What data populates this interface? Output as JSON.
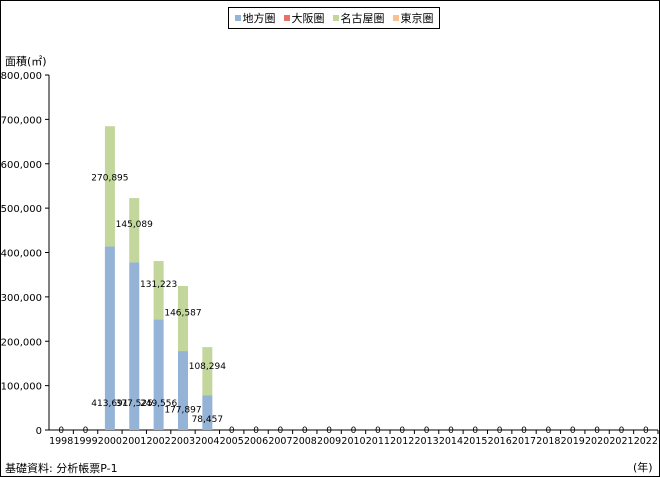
{
  "legend": [
    {
      "name": "地方圏",
      "color": "#95b3d7"
    },
    {
      "name": "大阪圏",
      "color": "#e6726c"
    },
    {
      "name": "名古屋圏",
      "color": "#c3d69b"
    },
    {
      "name": "東京圏",
      "color": "#fac090"
    }
  ],
  "ylabel": "面積(㎡)",
  "xunit": "(年)",
  "source": "基礎資料: 分析帳票P-1",
  "chart_data": {
    "type": "bar",
    "stacked": true,
    "categories": [
      "1998",
      "1999",
      "2000",
      "2001",
      "2002",
      "2003",
      "2004",
      "2005",
      "2006",
      "2007",
      "2008",
      "2009",
      "2010",
      "2011",
      "2012",
      "2013",
      "2014",
      "2015",
      "2016",
      "2017",
      "2018",
      "2019",
      "2020",
      "2021",
      "2022"
    ],
    "series": [
      {
        "name": "地方圏",
        "color": "#95b3d7",
        "values": [
          0,
          0,
          413691,
          377525,
          249556,
          177897,
          78457,
          0,
          0,
          0,
          0,
          0,
          0,
          0,
          0,
          0,
          0,
          0,
          0,
          0,
          0,
          0,
          0,
          0,
          0
        ]
      },
      {
        "name": "大阪圏",
        "color": "#e6726c",
        "values": [
          0,
          0,
          0,
          0,
          0,
          0,
          0,
          0,
          0,
          0,
          0,
          0,
          0,
          0,
          0,
          0,
          0,
          0,
          0,
          0,
          0,
          0,
          0,
          0,
          0
        ]
      },
      {
        "name": "名古屋圏",
        "color": "#c3d69b",
        "values": [
          0,
          0,
          270895,
          145089,
          131223,
          146587,
          108294,
          0,
          0,
          0,
          0,
          0,
          0,
          0,
          0,
          0,
          0,
          0,
          0,
          0,
          0,
          0,
          0,
          0,
          0
        ]
      },
      {
        "name": "東京圏",
        "color": "#fac090",
        "values": [
          0,
          0,
          0,
          0,
          0,
          0,
          0,
          0,
          0,
          0,
          0,
          0,
          0,
          0,
          0,
          0,
          0,
          0,
          0,
          0,
          0,
          0,
          0,
          0,
          0
        ]
      }
    ],
    "data_labels": [
      {
        "category": "2000",
        "series": "地方圏",
        "text": "413,691"
      },
      {
        "category": "2000",
        "series": "名古屋圏",
        "text": "270,895"
      },
      {
        "category": "2001",
        "series": "地方圏",
        "text": "377,525"
      },
      {
        "category": "2001",
        "series": "名古屋圏",
        "text": "145,089"
      },
      {
        "category": "2002",
        "series": "地方圏",
        "text": "249,556"
      },
      {
        "category": "2002",
        "series": "名古屋圏",
        "text": "131,223"
      },
      {
        "category": "2003",
        "series": "地方圏",
        "text": "177,897"
      },
      {
        "category": "2003",
        "series": "名古屋圏",
        "text": "146,587"
      },
      {
        "category": "2004",
        "series": "地方圏",
        "text": "78,457"
      },
      {
        "category": "2004",
        "series": "名古屋圏",
        "text": "108,294"
      }
    ],
    "zero_labels": "0",
    "ylim": [
      0,
      800000
    ],
    "yticks": [
      0,
      100000,
      200000,
      300000,
      400000,
      500000,
      600000,
      700000,
      800000
    ],
    "ytick_labels": [
      "0",
      "100,000",
      "200,000",
      "300,000",
      "400,000",
      "500,000",
      "600,000",
      "700,000",
      "800,000"
    ],
    "grid": false,
    "legend_position": "top-center"
  }
}
